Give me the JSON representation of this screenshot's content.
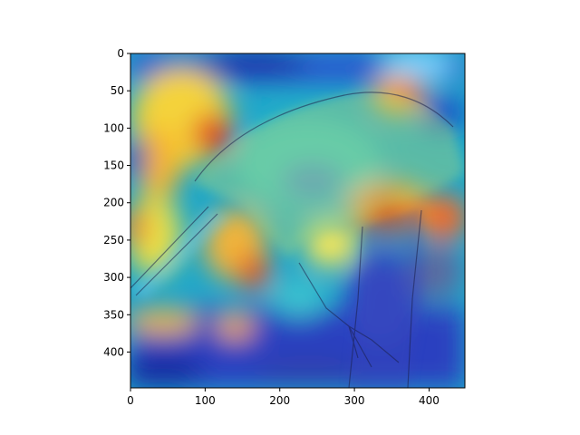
{
  "chart_data": {
    "type": "heatmap",
    "title": "",
    "xlabel": "",
    "ylabel": "",
    "xlim": [
      0,
      448
    ],
    "ylim": [
      448,
      0
    ],
    "x_ticks": [
      0,
      100,
      200,
      300,
      400
    ],
    "y_ticks": [
      0,
      50,
      100,
      150,
      200,
      250,
      300,
      350,
      400
    ],
    "x_tick_labels": [
      "0",
      "100",
      "200",
      "300",
      "400"
    ],
    "y_tick_labels": [
      "0",
      "50",
      "100",
      "150",
      "200",
      "250",
      "300",
      "350",
      "400"
    ],
    "colormap": "jet",
    "overlay": "photo of a bird perched on a branch",
    "grid": false,
    "colors": {
      "background": "#ffffff",
      "axes": "#000000"
    }
  }
}
